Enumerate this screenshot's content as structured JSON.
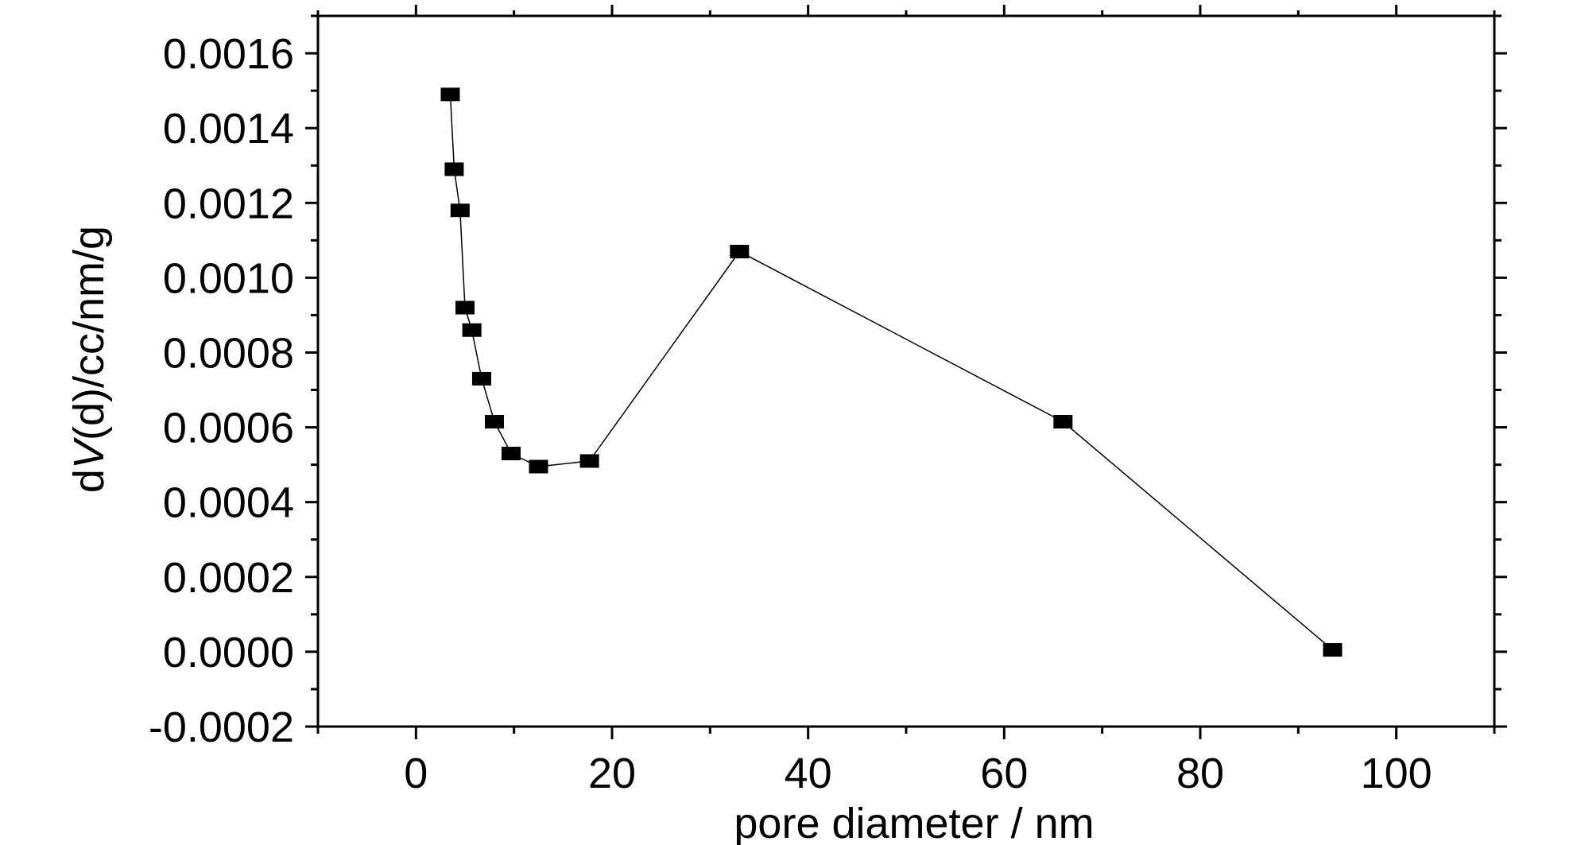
{
  "chart_data": {
    "type": "line",
    "xlabel": "pore diameter / nm",
    "ylabel_parts": [
      "dV(d)/cc/nm/g"
    ],
    "ylabel": {
      "pre": "d",
      "italic": "V",
      "post": "(d)/cc/nm/g"
    },
    "xlim": [
      -10,
      110
    ],
    "ylim": [
      -0.0002,
      0.0017
    ],
    "x_ticks": [
      0,
      20,
      40,
      60,
      80,
      100
    ],
    "x_tick_labels": [
      "0",
      "20",
      "40",
      "60",
      "80",
      "100"
    ],
    "y_ticks": [
      -0.0002,
      0.0,
      0.0002,
      0.0004,
      0.0006,
      0.0008,
      0.001,
      0.0012,
      0.0014,
      0.0016
    ],
    "y_tick_labels": [
      "-0.0002",
      "0.0000",
      "0.0002",
      "0.0004",
      "0.0006",
      "0.0008",
      "0.0010",
      "0.0012",
      "0.0014",
      "0.0016"
    ],
    "grid": false,
    "marker": "square",
    "line_color": "#000000",
    "marker_color": "#000000",
    "series": [
      {
        "x": [
          3.5,
          3.9,
          4.5,
          5.0,
          5.7,
          6.7,
          8.0,
          9.7,
          12.5,
          17.7,
          33.0,
          66.0,
          93.5
        ],
        "y": [
          0.00149,
          0.00129,
          0.00118,
          0.00092,
          0.00086,
          0.00073,
          0.000615,
          0.00053,
          0.000495,
          0.00051,
          0.00107,
          0.000615,
          5e-06
        ]
      }
    ]
  }
}
